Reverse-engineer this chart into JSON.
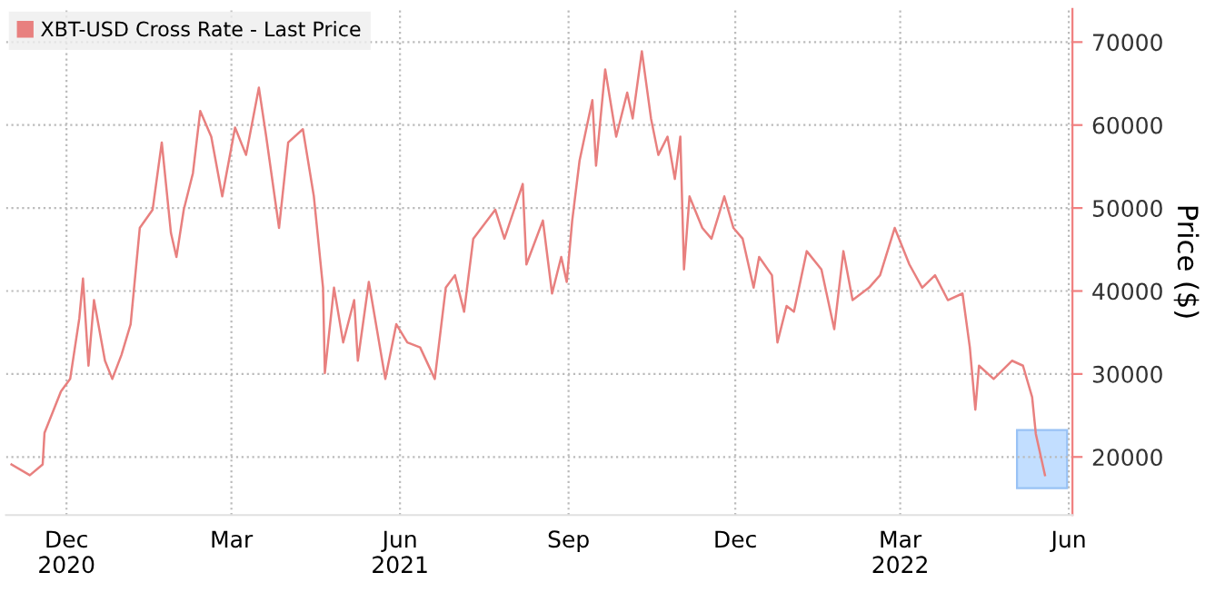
{
  "chart_data": {
    "type": "line",
    "ylabel": "Price ($)",
    "x": [
      "2020-11-01",
      "2020-11-11",
      "2020-11-18",
      "2020-11-19",
      "2020-11-28",
      "2020-12-03",
      "2020-12-08",
      "2020-12-10",
      "2020-12-13",
      "2020-12-16",
      "2020-12-22",
      "2020-12-26",
      "2020-12-31",
      "2021-01-05",
      "2021-01-10",
      "2021-01-17",
      "2021-01-22",
      "2021-01-27",
      "2021-01-30",
      "2021-02-03",
      "2021-02-08",
      "2021-02-12",
      "2021-02-18",
      "2021-02-24",
      "2021-03-03",
      "2021-03-09",
      "2021-03-16",
      "2021-03-20",
      "2021-03-27",
      "2021-04-01",
      "2021-04-09",
      "2021-04-15",
      "2021-04-20",
      "2021-04-21",
      "2021-04-26",
      "2021-05-01",
      "2021-05-07",
      "2021-05-09",
      "2021-05-15",
      "2021-05-24",
      "2021-05-30",
      "2021-06-05",
      "2021-06-12",
      "2021-06-20",
      "2021-06-26",
      "2021-07-01",
      "2021-07-06",
      "2021-07-11",
      "2021-07-23",
      "2021-07-28",
      "2021-08-07",
      "2021-08-09",
      "2021-08-18",
      "2021-08-23",
      "2021-08-28",
      "2021-08-31",
      "2021-09-03",
      "2021-09-07",
      "2021-09-14",
      "2021-09-16",
      "2021-09-21",
      "2021-09-27",
      "2021-10-03",
      "2021-10-06",
      "2021-10-11",
      "2021-10-16",
      "2021-10-20",
      "2021-10-25",
      "2021-10-29",
      "2021-11-01",
      "2021-11-03",
      "2021-11-06",
      "2021-11-13",
      "2021-11-18",
      "2021-11-25",
      "2021-11-30",
      "2021-12-05",
      "2021-12-11",
      "2021-12-14",
      "2021-12-21",
      "2021-12-24",
      "2021-12-29",
      "2022-01-02",
      "2022-01-09",
      "2022-01-17",
      "2022-01-24",
      "2022-01-29",
      "2022-02-03",
      "2022-02-12",
      "2022-02-18",
      "2022-02-26",
      "2022-03-06",
      "2022-03-13",
      "2022-03-20",
      "2022-03-27",
      "2022-04-04",
      "2022-04-08",
      "2022-04-11",
      "2022-04-13",
      "2022-04-21",
      "2022-05-01",
      "2022-05-07",
      "2022-05-12",
      "2022-05-14",
      "2022-05-19"
    ],
    "series": [
      {
        "name": "XBT-USD Cross Rate - Last Price",
        "color": "#e8807f",
        "values": [
          19100,
          17800,
          19100,
          22900,
          27900,
          29400,
          36700,
          41500,
          31000,
          38900,
          31600,
          29400,
          32300,
          36000,
          47600,
          49800,
          57900,
          47000,
          44100,
          49800,
          54200,
          61700,
          58600,
          51400,
          59700,
          56400,
          64500,
          58600,
          47600,
          57900,
          59500,
          51400,
          40400,
          30100,
          40400,
          33800,
          38900,
          31600,
          41100,
          29400,
          36000,
          33800,
          33200,
          29400,
          40400,
          41900,
          37500,
          46300,
          49800,
          46300,
          52900,
          43200,
          48500,
          39700,
          44100,
          41100,
          48500,
          55700,
          63000,
          55100,
          66700,
          58600,
          63900,
          60800,
          68900,
          60800,
          56400,
          58600,
          53500,
          58600,
          42600,
          51400,
          47600,
          46300,
          51400,
          47600,
          46300,
          40400,
          44100,
          41900,
          33800,
          38200,
          37500,
          44800,
          42600,
          35400,
          44800,
          38900,
          40400,
          41900,
          47600,
          43200,
          40400,
          41900,
          38900,
          39700,
          33200,
          25700,
          31000,
          29400,
          31600,
          31000,
          27200,
          22800,
          17800
        ]
      }
    ],
    "xlim": [
      "2020-10-29",
      "2022-06-03"
    ],
    "xticks": [
      {
        "value": "2020-12-01",
        "label": "Dec\n2020"
      },
      {
        "value": "2021-03-01",
        "label": "Mar"
      },
      {
        "value": "2021-06-01",
        "label": "Jun\n2021"
      },
      {
        "value": "2021-09-01",
        "label": "Sep"
      },
      {
        "value": "2021-12-01",
        "label": "Dec"
      },
      {
        "value": "2022-03-01",
        "label": "Mar\n2022"
      },
      {
        "value": "2022-06-01",
        "label": "Jun"
      }
    ],
    "ylim": [
      13000,
      74000
    ],
    "yticks": [
      20000,
      30000,
      40000,
      50000,
      60000,
      70000
    ],
    "grid": true,
    "legend": "top left",
    "line_style": "solid",
    "marker": "none"
  }
}
